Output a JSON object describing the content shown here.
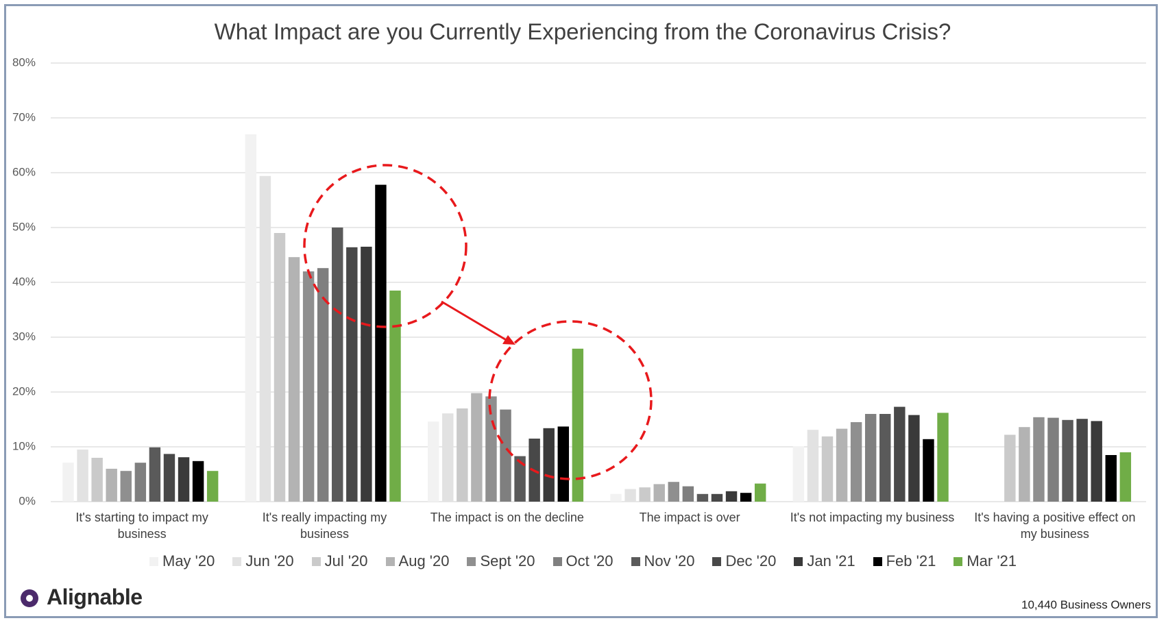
{
  "chart_data": {
    "type": "bar",
    "title": "What Impact are you Currently Experiencing from the Coronavirus Crisis?",
    "categories": [
      "It's starting to impact my business",
      "It's really impacting my business",
      "The impact is on the decline",
      "The impact is over",
      "It's not impacting my business",
      "It's having a positive effect on my business"
    ],
    "series": [
      {
        "name": "May '20",
        "color": "#f2f2f2",
        "values": [
          7.1,
          67,
          14.6,
          1.4,
          10.1,
          null
        ]
      },
      {
        "name": "Jun '20",
        "color": "#e2e2e2",
        "values": [
          9.5,
          59.4,
          16.1,
          2.3,
          13.1,
          null
        ]
      },
      {
        "name": "Jul '20",
        "color": "#cacaca",
        "values": [
          8.0,
          49,
          17,
          2.6,
          11.9,
          12.2
        ]
      },
      {
        "name": "Aug '20",
        "color": "#b3b3b3",
        "values": [
          6.0,
          44.6,
          19.8,
          3.2,
          13.3,
          13.6
        ]
      },
      {
        "name": "Sept '20",
        "color": "#8f8f8f",
        "values": [
          5.6,
          42,
          19.2,
          3.6,
          14.5,
          15.4
        ]
      },
      {
        "name": "Oct '20",
        "color": "#7f7f7f",
        "values": [
          7.1,
          42.6,
          16.8,
          2.8,
          16.0,
          15.3
        ]
      },
      {
        "name": "Nov '20",
        "color": "#5a5a5a",
        "values": [
          9.9,
          50,
          8.3,
          1.4,
          16.0,
          14.9
        ]
      },
      {
        "name": "Dec '20",
        "color": "#484848",
        "values": [
          8.7,
          46.4,
          11.5,
          1.4,
          17.3,
          15.1
        ]
      },
      {
        "name": "Jan '21",
        "color": "#3a3a3a",
        "values": [
          8.1,
          46.5,
          13.4,
          1.9,
          15.8,
          14.7
        ]
      },
      {
        "name": "Feb '21",
        "color": "#000000",
        "values": [
          7.4,
          57.8,
          13.7,
          1.6,
          11.4,
          8.5
        ]
      },
      {
        "name": "Mar '21",
        "color": "#70ad47",
        "values": [
          5.6,
          38.5,
          27.9,
          3.3,
          16.2,
          9.0
        ]
      }
    ],
    "ylim": [
      0,
      80
    ],
    "yticks": [
      {
        "value": 0,
        "label": "0%"
      },
      {
        "value": 10,
        "label": "10%"
      },
      {
        "value": 20,
        "label": "20%"
      },
      {
        "value": 30,
        "label": "30%"
      },
      {
        "value": 40,
        "label": "40%"
      },
      {
        "value": 50,
        "label": "50%"
      },
      {
        "value": 60,
        "label": "60%"
      },
      {
        "value": 70,
        "label": "70%"
      },
      {
        "value": 80,
        "label": "80%"
      }
    ],
    "grid": true,
    "brand": "Alignable",
    "note": "10,440 Business Owners"
  }
}
